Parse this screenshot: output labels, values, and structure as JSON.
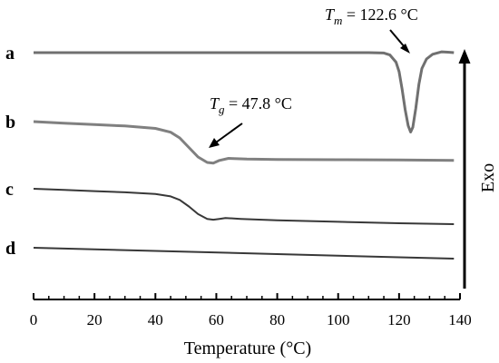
{
  "chart_data": {
    "type": "line",
    "xlabel": "Temperature (°C)",
    "xlim": [
      0,
      140
    ],
    "x_ticks": [
      0,
      20,
      40,
      60,
      80,
      100,
      120,
      140
    ],
    "y_arrow_label": "Exo",
    "series": [
      {
        "name": "a",
        "color": "#707070",
        "points": [
          [
            0,
            0.0
          ],
          [
            20,
            0.0
          ],
          [
            40,
            0.0
          ],
          [
            60,
            0.0
          ],
          [
            80,
            0.0
          ],
          [
            100,
            0.0
          ],
          [
            110,
            0.0
          ],
          [
            115,
            -0.02
          ],
          [
            117,
            -0.15
          ],
          [
            119,
            -0.6
          ],
          [
            120,
            -1.2
          ],
          [
            121,
            -2.3
          ],
          [
            122,
            -3.6
          ],
          [
            123,
            -4.6
          ],
          [
            123.8,
            -5.0
          ],
          [
            124.5,
            -4.7
          ],
          [
            125.5,
            -3.5
          ],
          [
            126.5,
            -2.0
          ],
          [
            127.5,
            -1.0
          ],
          [
            129,
            -0.4
          ],
          [
            131,
            -0.1
          ],
          [
            134,
            0.05
          ],
          [
            136,
            0.03
          ],
          [
            138,
            0.0
          ]
        ]
      },
      {
        "name": "b",
        "color": "#808080",
        "points": [
          [
            0,
            0.0
          ],
          [
            10,
            -0.12
          ],
          [
            20,
            -0.22
          ],
          [
            30,
            -0.32
          ],
          [
            40,
            -0.5
          ],
          [
            45,
            -0.78
          ],
          [
            48,
            -1.2
          ],
          [
            51,
            -1.9
          ],
          [
            54,
            -2.6
          ],
          [
            57,
            -3.0
          ],
          [
            59,
            -3.05
          ],
          [
            61,
            -2.85
          ],
          [
            64,
            -2.7
          ],
          [
            70,
            -2.75
          ],
          [
            80,
            -2.78
          ],
          [
            100,
            -2.8
          ],
          [
            120,
            -2.82
          ],
          [
            138,
            -2.85
          ]
        ]
      },
      {
        "name": "c",
        "color": "#383838",
        "points": [
          [
            0,
            0.0
          ],
          [
            10,
            -0.1
          ],
          [
            20,
            -0.2
          ],
          [
            30,
            -0.3
          ],
          [
            40,
            -0.45
          ],
          [
            45,
            -0.65
          ],
          [
            48,
            -0.95
          ],
          [
            51,
            -1.5
          ],
          [
            54,
            -2.15
          ],
          [
            57,
            -2.55
          ],
          [
            59,
            -2.62
          ],
          [
            61,
            -2.55
          ],
          [
            63,
            -2.48
          ],
          [
            68,
            -2.55
          ],
          [
            80,
            -2.68
          ],
          [
            100,
            -2.8
          ],
          [
            120,
            -2.92
          ],
          [
            138,
            -3.0
          ]
        ]
      },
      {
        "name": "d",
        "color": "#383838",
        "points": [
          [
            0,
            0.0
          ],
          [
            40,
            -0.35
          ],
          [
            80,
            -0.7
          ],
          [
            120,
            -1.05
          ],
          [
            138,
            -1.2
          ]
        ]
      }
    ],
    "annotations": [
      {
        "id": "tm",
        "symbol": "T",
        "subscript": "m",
        "text": " = 122.6 °C",
        "series": "a",
        "points_to_x": 124
      },
      {
        "id": "tg",
        "symbol": "T",
        "subscript": "g",
        "text": " = 47.8 °C",
        "series": "b",
        "points_to_x": 57
      }
    ]
  }
}
